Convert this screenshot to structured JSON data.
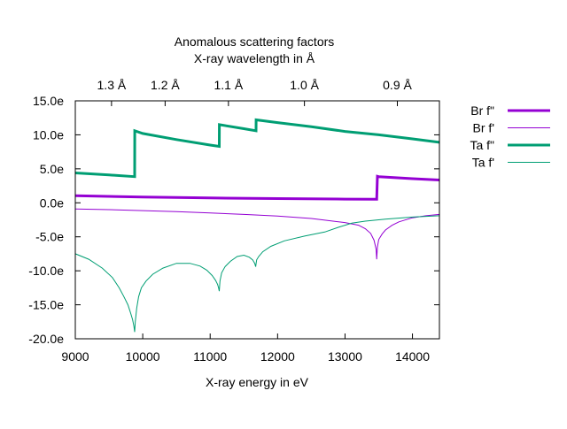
{
  "chart_data": {
    "type": "line",
    "title": "Anomalous scattering factors",
    "subtitle": "X-ray wavelength in Å",
    "xlabel": "X-ray energy in eV",
    "ylabel": "",
    "xlim": [
      9000,
      14400
    ],
    "ylim": [
      -20,
      15
    ],
    "grid": false,
    "legend_position": "right",
    "x_ticks": [
      {
        "value": 9000,
        "label": "9000"
      },
      {
        "value": 10000,
        "label": "10000"
      },
      {
        "value": 11000,
        "label": "11000"
      },
      {
        "value": 12000,
        "label": "12000"
      },
      {
        "value": 13000,
        "label": "13000"
      },
      {
        "value": 14000,
        "label": "14000"
      }
    ],
    "y_ticks": [
      {
        "value": 15,
        "label": "15.0e"
      },
      {
        "value": 10,
        "label": "10.0e"
      },
      {
        "value": 5,
        "label": "5.0e"
      },
      {
        "value": 0,
        "label": "0.0e"
      },
      {
        "value": -5,
        "label": "-5.0e"
      },
      {
        "value": -10,
        "label": "-10.0e"
      },
      {
        "value": -15,
        "label": "-15.0e"
      },
      {
        "value": -20,
        "label": "-20.0e"
      }
    ],
    "x2_ticks": [
      {
        "value": 9537,
        "label": "1.3 Å"
      },
      {
        "value": 10332,
        "label": "1.2 Å"
      },
      {
        "value": 11271,
        "label": "1.1 Å"
      },
      {
        "value": 12398,
        "label": "1.0 Å"
      },
      {
        "value": 13776,
        "label": "0.9 Å"
      }
    ],
    "series": [
      {
        "name": "Br f\"",
        "color": "#9400d3",
        "line_width": 3,
        "x": [
          9000,
          10000,
          11000,
          12000,
          13000,
          13470,
          13480,
          13500,
          14000,
          14400
        ],
        "y": [
          1.05,
          0.85,
          0.72,
          0.62,
          0.55,
          0.52,
          3.9,
          3.85,
          3.55,
          3.35
        ]
      },
      {
        "name": "Br f'",
        "color": "#9400d3",
        "line_width": 1,
        "x": [
          9000,
          9500,
          10000,
          10500,
          11000,
          11500,
          12000,
          12500,
          13000,
          13200,
          13300,
          13380,
          13430,
          13460,
          13470,
          13480,
          13500,
          13550,
          13600,
          13700,
          13800,
          14000,
          14200,
          14400
        ],
        "y": [
          -0.9,
          -1.0,
          -1.15,
          -1.3,
          -1.5,
          -1.7,
          -1.95,
          -2.3,
          -2.9,
          -3.3,
          -3.8,
          -4.5,
          -5.5,
          -6.8,
          -8.3,
          -6.5,
          -5.4,
          -4.6,
          -4.0,
          -3.3,
          -2.8,
          -2.2,
          -1.9,
          -1.7
        ]
      },
      {
        "name": "Ta f\"",
        "color": "#009e73",
        "line_width": 3,
        "x": [
          9000,
          9500,
          9880,
          9881,
          10000,
          10500,
          11000,
          11135,
          11136,
          11500,
          11680,
          11681,
          12000,
          12500,
          13000,
          13500,
          14000,
          14400
        ],
        "y": [
          4.4,
          4.1,
          3.85,
          10.6,
          10.2,
          9.3,
          8.5,
          8.3,
          11.5,
          10.9,
          10.6,
          12.2,
          11.8,
          11.2,
          10.5,
          10.0,
          9.4,
          8.9
        ]
      },
      {
        "name": "Ta f'",
        "color": "#009e73",
        "line_width": 1,
        "x": [
          9000,
          9200,
          9400,
          9550,
          9650,
          9720,
          9780,
          9820,
          9850,
          9870,
          9880,
          9890,
          9910,
          9940,
          9980,
          10050,
          10150,
          10300,
          10500,
          10700,
          10850,
          10950,
          11030,
          11080,
          11110,
          11125,
          11135,
          11145,
          11170,
          11220,
          11300,
          11400,
          11500,
          11580,
          11630,
          11660,
          11675,
          11680,
          11690,
          11720,
          11780,
          11900,
          12100,
          12400,
          12700,
          12900,
          13100,
          13300,
          13600,
          14000,
          14400
        ],
        "y": [
          -7.5,
          -8.3,
          -9.6,
          -11.0,
          -12.5,
          -13.8,
          -15.0,
          -16.2,
          -17.2,
          -18.2,
          -19.0,
          -17.5,
          -15.5,
          -13.8,
          -12.5,
          -11.5,
          -10.5,
          -9.6,
          -8.9,
          -8.9,
          -9.3,
          -9.9,
          -10.7,
          -11.4,
          -12.0,
          -12.5,
          -13.0,
          -11.5,
          -10.3,
          -9.4,
          -8.6,
          -7.9,
          -7.7,
          -8.0,
          -8.4,
          -8.9,
          -9.4,
          -9.0,
          -8.4,
          -7.9,
          -7.2,
          -6.4,
          -5.6,
          -4.9,
          -4.3,
          -3.6,
          -3.0,
          -2.7,
          -2.4,
          -2.1,
          -1.9
        ]
      }
    ]
  }
}
